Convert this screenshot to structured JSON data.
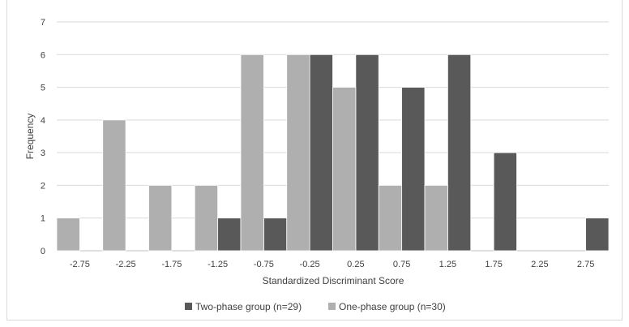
{
  "chart_data": {
    "type": "bar",
    "title": "",
    "xlabel": "Standardized Discriminant Score",
    "ylabel": "Frequency",
    "ylim": [
      0,
      7
    ],
    "y_ticks": [
      "0",
      "1",
      "2",
      "3",
      "4",
      "5",
      "6",
      "7"
    ],
    "grid": true,
    "legend_position": "bottom",
    "categories": [
      "-2.75",
      "-2.25",
      "-1.75",
      "-1.25",
      "-0.75",
      "-0.25",
      "0.25",
      "0.75",
      "1.25",
      "1.75",
      "2.25",
      "2.75"
    ],
    "series": [
      {
        "name": "Two-phase group (n=29)",
        "color": "#595959",
        "values": [
          0,
          0,
          0,
          1,
          1,
          6,
          6,
          5,
          6,
          3,
          0,
          1
        ]
      },
      {
        "name": "One-phase group (n=30)",
        "color": "#afafaf",
        "values": [
          1,
          4,
          2,
          2,
          6,
          6,
          5,
          2,
          2,
          0,
          0,
          0
        ]
      }
    ]
  }
}
